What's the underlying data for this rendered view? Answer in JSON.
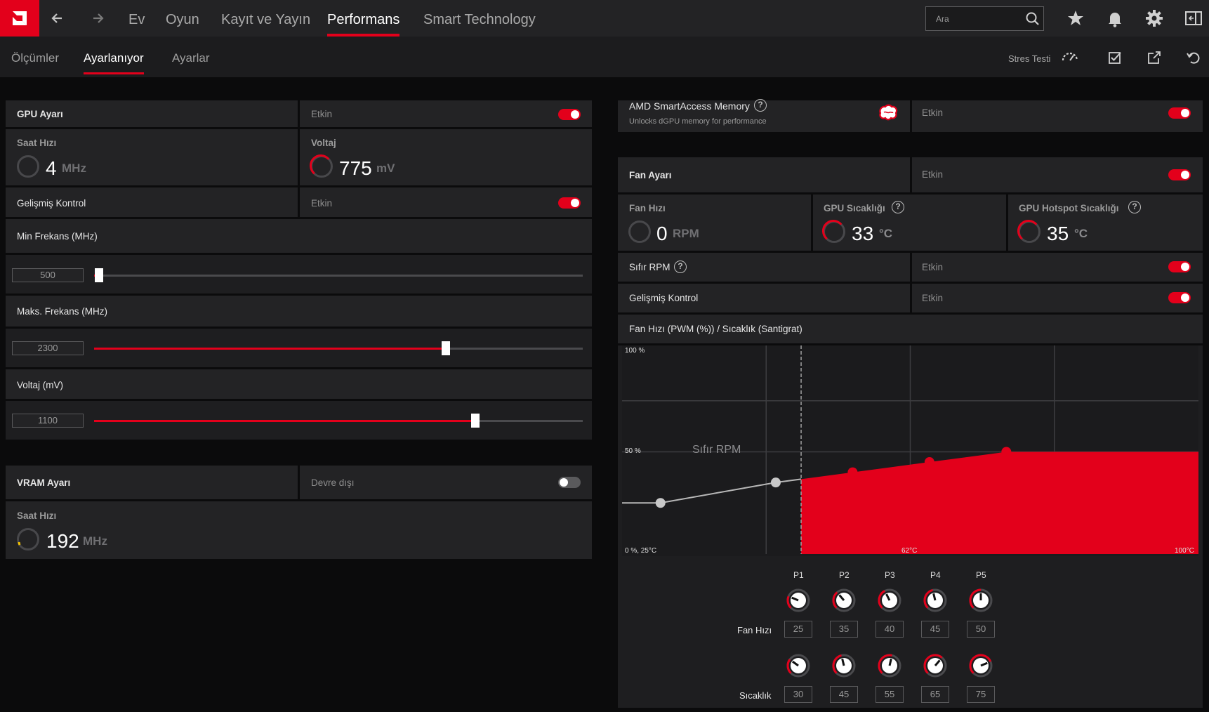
{
  "nav": {
    "back_icon": "arrow-left-icon",
    "forward_icon": "arrow-right-icon",
    "tabs": [
      "Ev",
      "Oyun",
      "Kayıt ve Yayın",
      "Performans",
      "Smart Technology"
    ],
    "active_tab": "Performans",
    "search_placeholder": "Ara"
  },
  "subnav": {
    "tabs": [
      "Ölçümler",
      "Ayarlanıyor",
      "Ayarlar"
    ],
    "active_tab": "Ayarlanıyor",
    "stress_test": "Stres Testi"
  },
  "gpu": {
    "title": "GPU Ayarı",
    "state": "Etkin",
    "enabled": true,
    "clock_label": "Saat Hızı",
    "clock_value": "4",
    "clock_unit": "MHz",
    "voltage_label": "Voltaj",
    "voltage_value": "775",
    "voltage_unit": "mV",
    "advanced_label": "Gelişmiş Kontrol",
    "advanced_state": "Etkin",
    "min_freq_label": "Min Frekans (MHz)",
    "min_freq_value": "500",
    "min_freq_fraction": 0.01,
    "max_freq_label": "Maks. Frekans (MHz)",
    "max_freq_value": "2300",
    "max_freq_fraction": 0.72,
    "volt_label": "Voltaj (mV)",
    "volt_value": "1100",
    "volt_fraction": 0.78
  },
  "vram": {
    "title": "VRAM Ayarı",
    "state": "Devre dışı",
    "enabled": false,
    "clock_label": "Saat Hızı",
    "clock_value": "192",
    "clock_unit": "MHz"
  },
  "sam": {
    "title": "AMD SmartAccess Memory",
    "subtitle": "Unlocks dGPU memory for performance",
    "state": "Etkin"
  },
  "fan": {
    "title": "Fan Ayarı",
    "state": "Etkin",
    "speed_label": "Fan Hızı",
    "speed_value": "0",
    "speed_unit": "RPM",
    "gpu_temp_label": "GPU Sıcaklığı",
    "gpu_temp_value": "33",
    "temp_unit": "°C",
    "hotspot_label": "GPU Hotspot Sıcaklığı",
    "hotspot_value": "35",
    "zero_rpm_label": "Sıfır RPM",
    "zero_rpm_state": "Etkin",
    "advanced_label": "Gelişmiş Kontrol",
    "advanced_state": "Etkin",
    "curve_title": "Fan Hızı (PWM (%)) / Sıcaklık (Santigrat)",
    "points_row_label": "Fan Hızı",
    "temps_row_label": "Sıcaklık",
    "point_labels": [
      "P1",
      "P2",
      "P3",
      "P4",
      "P5"
    ],
    "speeds": [
      "25",
      "35",
      "40",
      "45",
      "50"
    ],
    "temps": [
      "30",
      "45",
      "55",
      "65",
      "75"
    ]
  },
  "chart_data": {
    "type": "line",
    "title": "Fan Hızı (PWM (%)) / Sıcaklık (Santigrat)",
    "x": [
      30,
      45,
      55,
      65,
      75
    ],
    "series": [
      {
        "values": [
          25,
          35,
          40,
          45,
          50
        ]
      }
    ],
    "xlim": [
      25,
      100
    ],
    "ylim": [
      0,
      100
    ],
    "tick_labels": {
      "y_top": "100 %",
      "y_mid": "50 %",
      "origin": "0 %, 25°C",
      "x_mid": "62°C",
      "x_max": "100°C"
    },
    "zero_rpm_label": "Sıfır RPM",
    "zero_rpm_threshold": 50,
    "accent": "#e3001b",
    "grid": true
  },
  "colors": {
    "accent": "#e3001b",
    "panel": "#232325",
    "background": "#0b0b0c"
  }
}
